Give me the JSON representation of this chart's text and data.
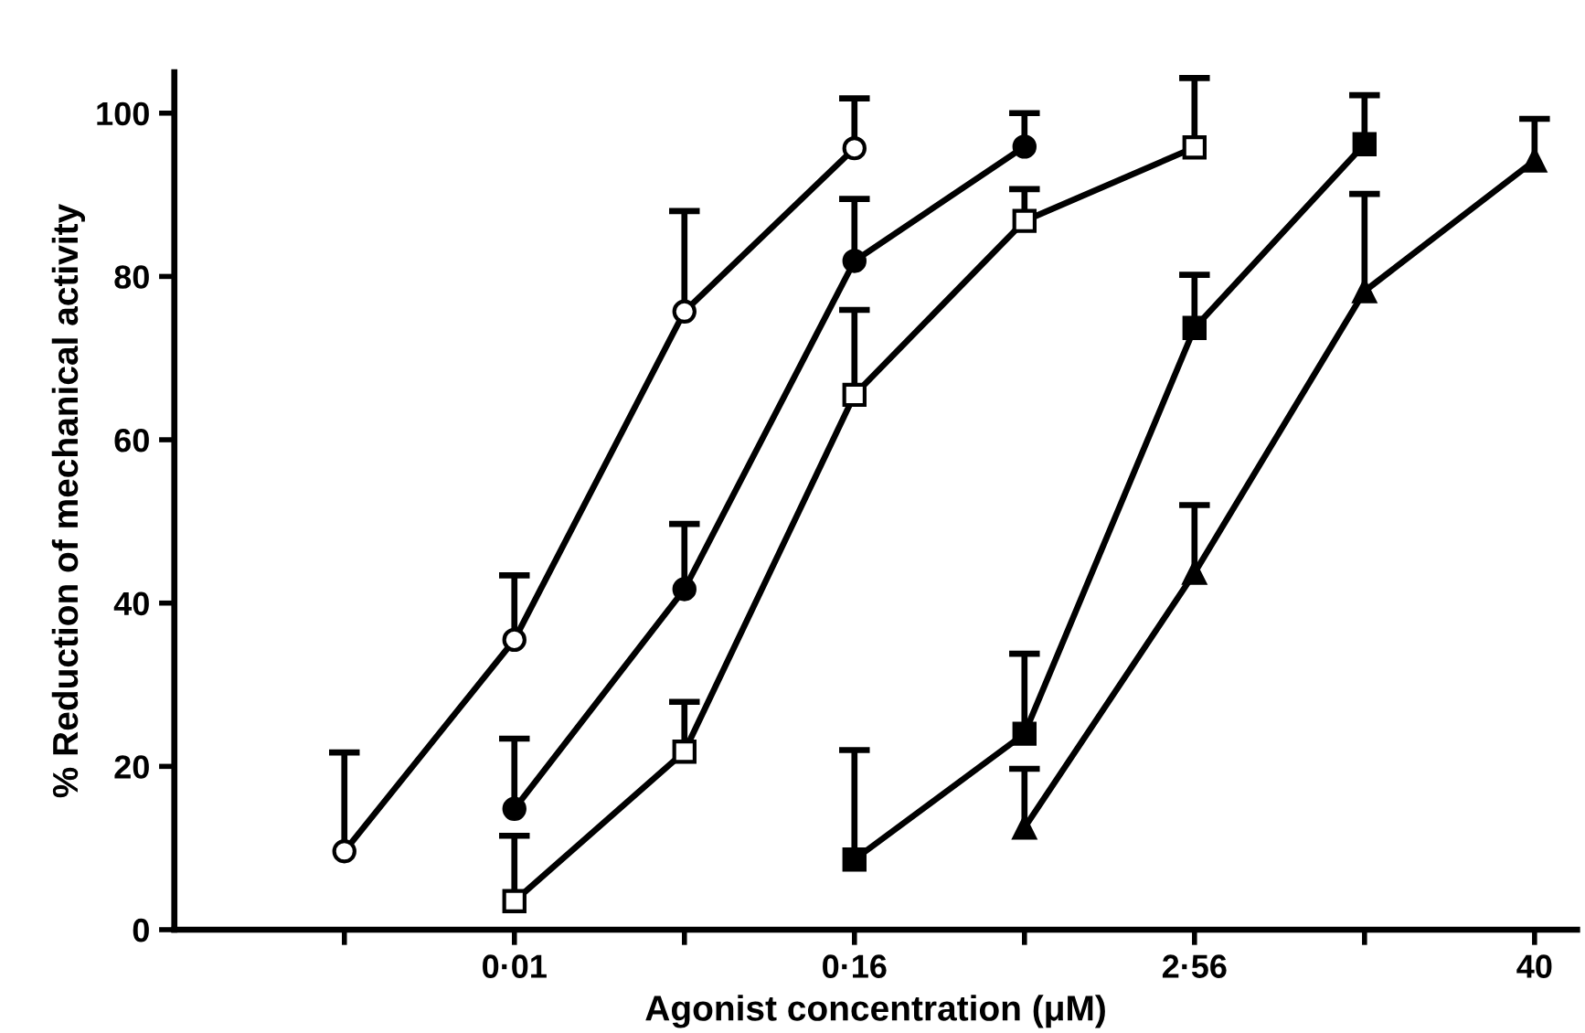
{
  "chart_data": {
    "type": "line",
    "xlabel": "Agonist concentration (μM)",
    "ylabel": "% Reduction of mechanical activity",
    "categories": [
      null,
      "0·01",
      null,
      "0·16",
      null,
      "2·56",
      null,
      "40"
    ],
    "ylim": [
      0,
      105
    ],
    "yticks": [
      0,
      20,
      40,
      60,
      80,
      100
    ],
    "grid": false,
    "legend": false,
    "series": [
      {
        "color": "#000000",
        "marker": "circle",
        "colors": [
          "#ffffff",
          "#ffffff",
          "#ffffff",
          "#ffffff",
          null,
          null,
          null,
          null
        ],
        "values": [
          9.6,
          35.5,
          75.7,
          95.7,
          null,
          null,
          null,
          null
        ],
        "errors": [
          [
            9.6,
            21.7
          ],
          [
            35.5,
            43.4
          ],
          [
            75.7,
            88
          ],
          [
            95.7,
            101.8
          ],
          null,
          null,
          null,
          null
        ]
      },
      {
        "color": "#000000",
        "marker": "circle",
        "colors": [
          null,
          "#000000",
          "#000000",
          "#000000",
          "#000000",
          null,
          null,
          null
        ],
        "values": [
          null,
          14.8,
          41.7,
          81.9,
          95.9,
          null,
          null,
          null
        ],
        "errors": [
          null,
          [
            14.8,
            23.4
          ],
          [
            41.7,
            49.7
          ],
          [
            81.9,
            89.5
          ],
          [
            95.9,
            100
          ],
          null,
          null,
          null
        ]
      },
      {
        "color": "#000000",
        "marker": "square",
        "colors": [
          null,
          "#ffffff",
          "#ffffff",
          "#ffffff",
          "#ffffff",
          "#ffffff",
          null,
          null
        ],
        "values": [
          null,
          3.5,
          21.8,
          65.5,
          86.8,
          95.8,
          null,
          null
        ],
        "errors": [
          null,
          [
            3.5,
            11.5
          ],
          [
            21.8,
            27.9
          ],
          [
            65.5,
            75.9
          ],
          [
            86.8,
            90.7
          ],
          [
            95.8,
            104.3
          ],
          null,
          null
        ]
      },
      {
        "color": "#000000",
        "marker": "square",
        "colors": [
          null,
          null,
          null,
          "#000000",
          "#000000",
          "#000000",
          "#000000",
          null
        ],
        "values": [
          null,
          null,
          null,
          8.6,
          24,
          73.7,
          96.2,
          null
        ],
        "errors": [
          null,
          null,
          null,
          [
            8.6,
            22
          ],
          [
            24,
            33.8
          ],
          [
            73.7,
            80.2
          ],
          [
            96.2,
            102.2
          ],
          null
        ]
      },
      {
        "color": "#000000",
        "marker": "triangle",
        "colors": [
          null,
          null,
          null,
          null,
          "#000000",
          "#000000",
          "#000000",
          "#000000"
        ],
        "values": [
          null,
          null,
          null,
          null,
          12.5,
          43.7,
          78.2,
          94.2
        ],
        "errors": [
          null,
          null,
          null,
          null,
          [
            12.5,
            19.7
          ],
          [
            43.7,
            52
          ],
          [
            78.2,
            90.1
          ],
          [
            94.2,
            99.3
          ]
        ]
      }
    ]
  }
}
